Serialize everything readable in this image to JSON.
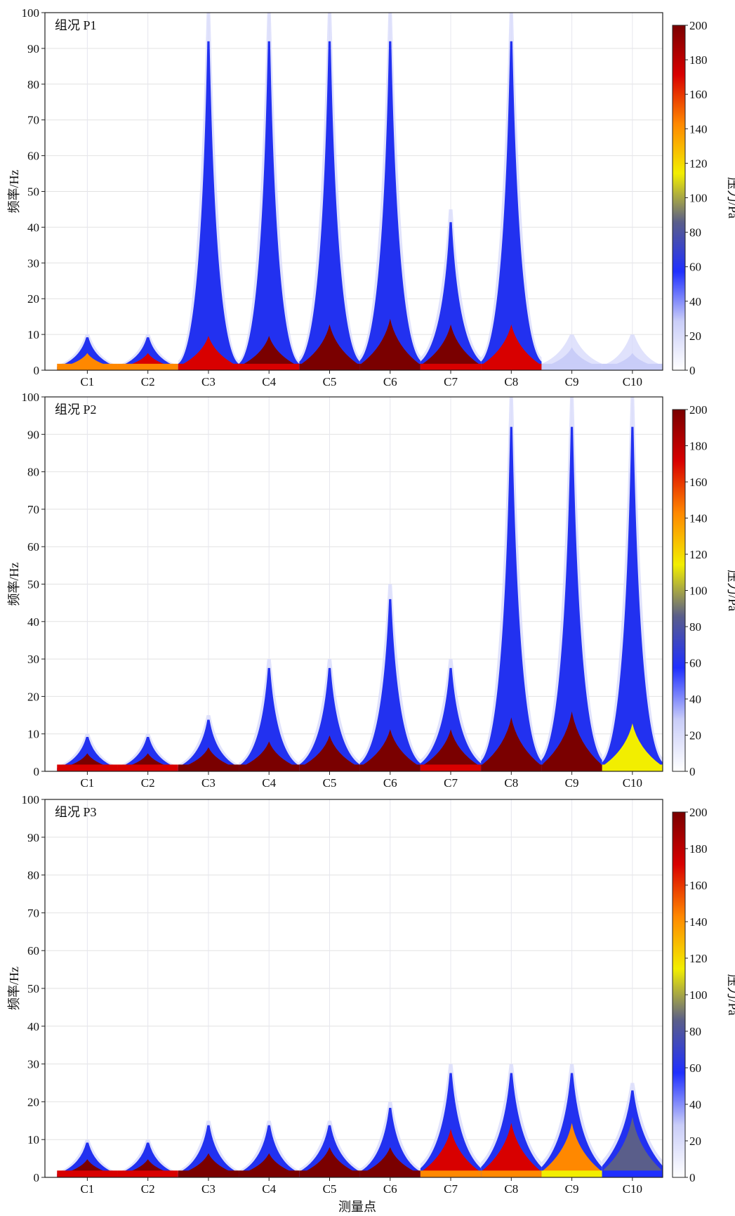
{
  "chart_data": {
    "type": "heatmap",
    "xlabel": "测量点",
    "ylabel": "频率/Hz",
    "colorbar_label": "压力/Pa",
    "colorbar_range": [
      0,
      200
    ],
    "colorbar_ticks": [
      "0",
      "20",
      "40",
      "60",
      "80",
      "100",
      "120",
      "140",
      "160",
      "180",
      "200"
    ],
    "yticks": [
      "0",
      "10",
      "20",
      "30",
      "40",
      "50",
      "60",
      "70",
      "80",
      "90",
      "100"
    ],
    "ylim": [
      0,
      100
    ],
    "categories": [
      "C1",
      "C2",
      "C3",
      "C4",
      "C5",
      "C6",
      "C7",
      "C8",
      "C9",
      "C10"
    ],
    "colormap": [
      "#ffffff",
      "#c9cdf8",
      "#1f2fff",
      "#5a5e8a",
      "#f2ee00",
      "#ff8800",
      "#d80000",
      "#7a0000"
    ],
    "panels": [
      {
        "label": "组况 P1",
        "peaks": [
          {
            "point": "C1",
            "pressure_at_0Hz": 150,
            "band_hz": 3,
            "spike_hz": 10
          },
          {
            "point": "C2",
            "pressure_at_0Hz": 160,
            "band_hz": 3,
            "spike_hz": 10
          },
          {
            "point": "C3",
            "pressure_at_0Hz": 180,
            "band_hz": 6,
            "spike_hz": 100
          },
          {
            "point": "C4",
            "pressure_at_0Hz": 190,
            "band_hz": 6,
            "spike_hz": 100
          },
          {
            "point": "C5",
            "pressure_at_0Hz": 200,
            "band_hz": 8,
            "spike_hz": 100
          },
          {
            "point": "C6",
            "pressure_at_0Hz": 200,
            "band_hz": 9,
            "spike_hz": 100
          },
          {
            "point": "C7",
            "pressure_at_0Hz": 190,
            "band_hz": 8,
            "spike_hz": 45
          },
          {
            "point": "C8",
            "pressure_at_0Hz": 175,
            "band_hz": 8,
            "spike_hz": 100
          },
          {
            "point": "C9",
            "pressure_at_0Hz": 40,
            "band_hz": 4,
            "spike_hz": 10
          },
          {
            "point": "C10",
            "pressure_at_0Hz": 30,
            "band_hz": 3,
            "spike_hz": 10
          }
        ]
      },
      {
        "label": "组况 P2",
        "peaks": [
          {
            "point": "C1",
            "pressure_at_0Hz": 190,
            "band_hz": 3,
            "spike_hz": 10
          },
          {
            "point": "C2",
            "pressure_at_0Hz": 190,
            "band_hz": 3,
            "spike_hz": 10
          },
          {
            "point": "C3",
            "pressure_at_0Hz": 200,
            "band_hz": 4,
            "spike_hz": 15
          },
          {
            "point": "C4",
            "pressure_at_0Hz": 200,
            "band_hz": 5,
            "spike_hz": 30
          },
          {
            "point": "C5",
            "pressure_at_0Hz": 200,
            "band_hz": 6,
            "spike_hz": 30
          },
          {
            "point": "C6",
            "pressure_at_0Hz": 200,
            "band_hz": 7,
            "spike_hz": 50
          },
          {
            "point": "C7",
            "pressure_at_0Hz": 190,
            "band_hz": 7,
            "spike_hz": 30
          },
          {
            "point": "C8",
            "pressure_at_0Hz": 200,
            "band_hz": 9,
            "spike_hz": 100
          },
          {
            "point": "C9",
            "pressure_at_0Hz": 200,
            "band_hz": 10,
            "spike_hz": 100
          },
          {
            "point": "C10",
            "pressure_at_0Hz": 110,
            "band_hz": 8,
            "spike_hz": 100
          }
        ]
      },
      {
        "label": "组况 P3",
        "peaks": [
          {
            "point": "C1",
            "pressure_at_0Hz": 190,
            "band_hz": 3,
            "spike_hz": 10
          },
          {
            "point": "C2",
            "pressure_at_0Hz": 190,
            "band_hz": 3,
            "spike_hz": 10
          },
          {
            "point": "C3",
            "pressure_at_0Hz": 200,
            "band_hz": 4,
            "spike_hz": 15
          },
          {
            "point": "C4",
            "pressure_at_0Hz": 200,
            "band_hz": 4,
            "spike_hz": 15
          },
          {
            "point": "C5",
            "pressure_at_0Hz": 200,
            "band_hz": 5,
            "spike_hz": 15
          },
          {
            "point": "C6",
            "pressure_at_0Hz": 200,
            "band_hz": 5,
            "spike_hz": 20
          },
          {
            "point": "C7",
            "pressure_at_0Hz": 160,
            "band_hz": 8,
            "spike_hz": 30
          },
          {
            "point": "C8",
            "pressure_at_0Hz": 165,
            "band_hz": 9,
            "spike_hz": 30
          },
          {
            "point": "C9",
            "pressure_at_0Hz": 130,
            "band_hz": 9,
            "spike_hz": 30
          },
          {
            "point": "C10",
            "pressure_at_0Hz": 75,
            "band_hz": 10,
            "spike_hz": 25
          }
        ]
      }
    ]
  }
}
